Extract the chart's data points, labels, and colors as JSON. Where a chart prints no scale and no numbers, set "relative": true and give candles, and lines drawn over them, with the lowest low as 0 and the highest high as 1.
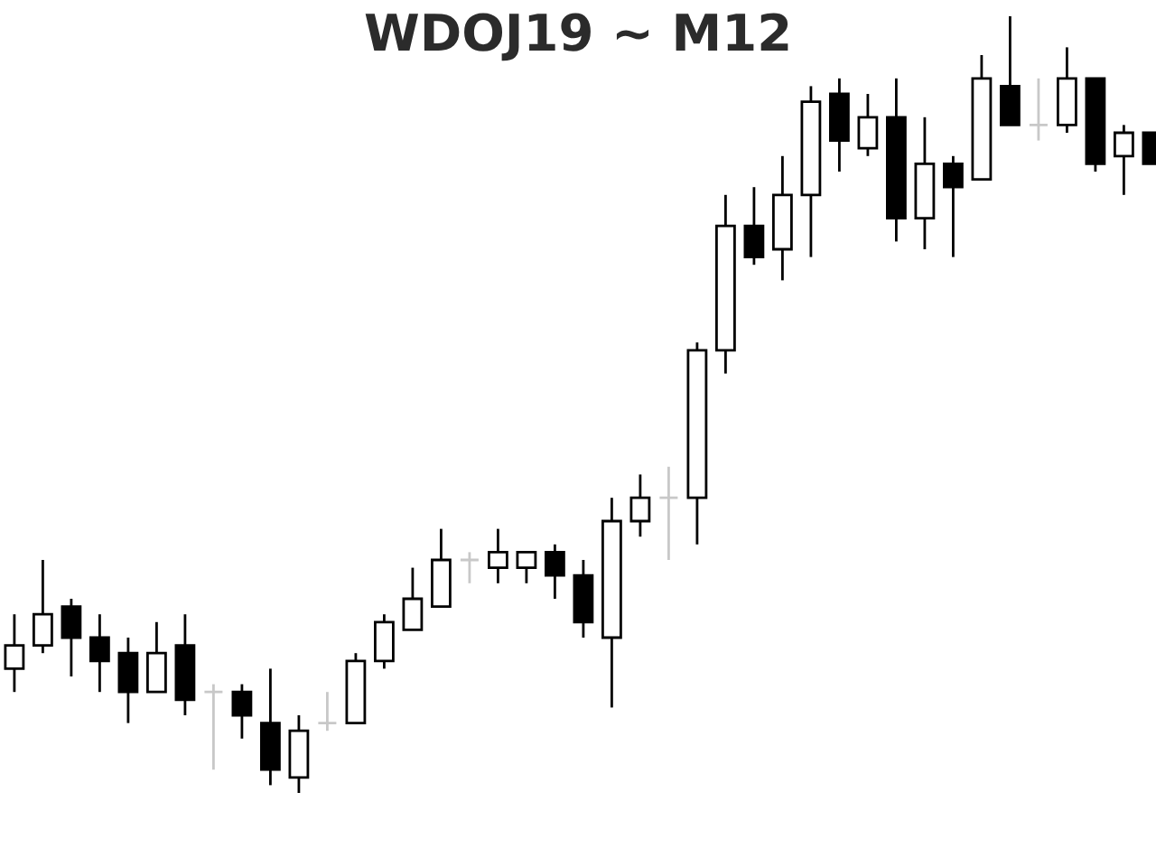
{
  "chart_data": {
    "type": "candlestick",
    "title": "WDOJ19 ~ M12",
    "relative": true,
    "categories": [
      null,
      null,
      null,
      null,
      null,
      null,
      null,
      null,
      null,
      null,
      null,
      null,
      null,
      null,
      null,
      null,
      null,
      null,
      null,
      null,
      null,
      null,
      null,
      null,
      null,
      null,
      null,
      null,
      null,
      null,
      null,
      null,
      null,
      null,
      null,
      null,
      null,
      null,
      null,
      null,
      null
    ],
    "ohlc": [
      [
        0.16,
        0.23,
        0.13,
        0.19
      ],
      [
        0.19,
        0.3,
        0.18,
        0.23
      ],
      [
        0.24,
        0.25,
        0.15,
        0.2
      ],
      [
        0.2,
        0.23,
        0.13,
        0.17
      ],
      [
        0.18,
        0.2,
        0.09,
        0.13
      ],
      [
        0.13,
        0.22,
        0.13,
        0.18
      ],
      [
        0.19,
        0.23,
        0.1,
        0.12
      ],
      [
        0.13,
        0.14,
        0.03,
        0.13
      ],
      [
        0.13,
        0.14,
        0.07,
        0.1
      ],
      [
        0.09,
        0.16,
        0.01,
        0.03
      ],
      [
        0.02,
        0.1,
        0.0,
        0.08
      ],
      [
        0.09,
        0.13,
        0.08,
        0.09
      ],
      [
        0.09,
        0.18,
        0.09,
        0.17
      ],
      [
        0.17,
        0.23,
        0.16,
        0.22
      ],
      [
        0.21,
        0.29,
        0.21,
        0.25
      ],
      [
        0.24,
        0.34,
        0.24,
        0.3
      ],
      [
        0.3,
        0.31,
        0.27,
        0.3
      ],
      [
        0.29,
        0.34,
        0.27,
        0.31
      ],
      [
        0.29,
        0.31,
        0.27,
        0.31
      ],
      [
        0.31,
        0.32,
        0.25,
        0.28
      ],
      [
        0.28,
        0.3,
        0.2,
        0.22
      ],
      [
        0.2,
        0.38,
        0.11,
        0.35
      ],
      [
        0.35,
        0.41,
        0.33,
        0.38
      ],
      [
        0.38,
        0.42,
        0.3,
        0.38
      ],
      [
        0.38,
        0.58,
        0.32,
        0.57
      ],
      [
        0.57,
        0.77,
        0.54,
        0.73
      ],
      [
        0.73,
        0.78,
        0.68,
        0.69
      ],
      [
        0.7,
        0.82,
        0.66,
        0.77
      ],
      [
        0.77,
        0.91,
        0.69,
        0.89
      ],
      [
        0.9,
        0.92,
        0.8,
        0.84
      ],
      [
        0.83,
        0.9,
        0.82,
        0.87
      ],
      [
        0.87,
        0.92,
        0.71,
        0.74
      ],
      [
        0.74,
        0.87,
        0.7,
        0.81
      ],
      [
        0.81,
        0.82,
        0.69,
        0.78
      ],
      [
        0.79,
        0.95,
        0.79,
        0.92
      ],
      [
        0.91,
        1.0,
        0.86,
        0.86
      ],
      [
        0.86,
        0.92,
        0.84,
        0.86
      ],
      [
        0.86,
        0.96,
        0.85,
        0.92
      ],
      [
        0.92,
        0.92,
        0.8,
        0.81
      ],
      [
        0.82,
        0.86,
        0.77,
        0.85
      ],
      [
        0.85,
        0.85,
        0.81,
        0.81
      ]
    ],
    "colors": [
      "#ffffff",
      "#ffffff",
      "#000000",
      "#000000",
      "#000000",
      "#ffffff",
      "#000000",
      "#c8c8c8",
      "#000000",
      "#000000",
      "#ffffff",
      "#c8c8c8",
      "#ffffff",
      "#ffffff",
      "#ffffff",
      "#ffffff",
      "#c8c8c8",
      "#ffffff",
      "#ffffff",
      "#000000",
      "#000000",
      "#ffffff",
      "#ffffff",
      "#c8c8c8",
      "#ffffff",
      "#ffffff",
      "#000000",
      "#ffffff",
      "#ffffff",
      "#000000",
      "#ffffff",
      "#000000",
      "#ffffff",
      "#000000",
      "#ffffff",
      "#000000",
      "#c8c8c8",
      "#ffffff",
      "#000000",
      "#ffffff",
      "#000000"
    ]
  }
}
